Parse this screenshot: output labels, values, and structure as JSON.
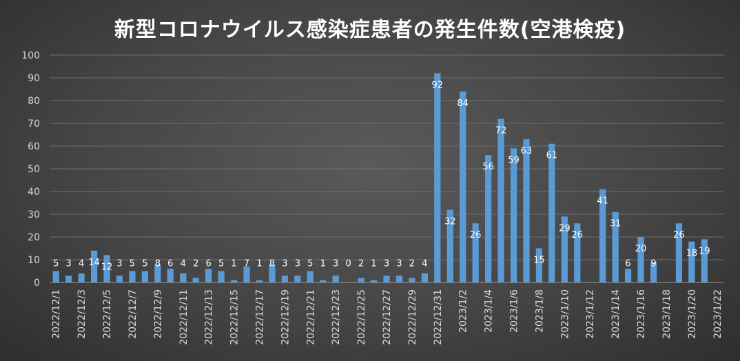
{
  "chart_data": {
    "type": "bar",
    "title": "新型コロナウイルス感染症患者の発生件数(空港検疫)",
    "xlabel": "",
    "ylabel": "",
    "ylim": [
      0,
      100
    ],
    "y_ticks": [
      0,
      10,
      20,
      30,
      40,
      50,
      60,
      70,
      80,
      90,
      100
    ],
    "grid": true,
    "legend": "none",
    "series_color": "#5b9bd5",
    "categories": [
      "2022/12/1",
      "2022/12/2",
      "2022/12/3",
      "2022/12/4",
      "2022/12/5",
      "2022/12/6",
      "2022/12/7",
      "2022/12/8",
      "2022/12/9",
      "2022/12/10",
      "2022/12/11",
      "2022/12/12",
      "2022/12/13",
      "2022/12/14",
      "2022/12/15",
      "2022/12/16",
      "2022/12/17",
      "2022/12/18",
      "2022/12/19",
      "2022/12/20",
      "2022/12/21",
      "2022/12/22",
      "2022/12/23",
      "2022/12/24",
      "2022/12/25",
      "2022/12/26",
      "2022/12/27",
      "2022/12/28",
      "2022/12/29",
      "2022/12/30",
      "2022/12/31",
      "2023/1/1",
      "2023/1/2",
      "2023/1/3",
      "2023/1/4",
      "2023/1/5",
      "2023/1/6",
      "2023/1/7",
      "2023/1/8",
      "2023/1/9",
      "2023/1/10",
      "2023/1/11",
      "2023/1/12",
      "2023/1/13",
      "2023/1/14",
      "2023/1/15",
      "2023/1/16",
      "2023/1/17",
      "2023/1/18",
      "2023/1/19",
      "2023/1/20",
      "2023/1/21",
      "2023/1/22"
    ],
    "tick_labels": [
      "2022/12/1",
      "2022/12/3",
      "2022/12/5",
      "2022/12/7",
      "2022/12/9",
      "2022/12/11",
      "2022/12/13",
      "2022/12/15",
      "2022/12/17",
      "2022/12/19",
      "2022/12/21",
      "2022/12/23",
      "2022/12/25",
      "2022/12/27",
      "2022/12/29",
      "2022/12/31",
      "2023/1/2",
      "2023/1/4",
      "2023/1/6",
      "2023/1/8",
      "2023/1/10",
      "2023/1/12",
      "2023/1/14",
      "2023/1/16",
      "2023/1/18",
      "2023/1/20",
      "2023/1/22"
    ],
    "values": [
      5,
      3,
      4,
      14,
      12,
      3,
      5,
      5,
      8,
      6,
      4,
      2,
      6,
      5,
      1,
      7,
      1,
      8,
      3,
      3,
      5,
      1,
      3,
      0,
      2,
      1,
      3,
      3,
      2,
      4,
      92,
      32,
      84,
      26,
      56,
      72,
      59,
      63,
      15,
      61,
      29,
      26,
      null,
      41,
      31,
      6,
      20,
      9,
      null,
      26,
      18,
      19,
      null
    ],
    "data_labels": [
      "5",
      "3",
      "4",
      "14",
      "12",
      "3",
      "5",
      "5",
      "8",
      "6",
      "4",
      "2",
      "6",
      "5",
      "1",
      "7",
      "1",
      "8",
      "3",
      "3",
      "5",
      "1",
      "3",
      "0",
      "2",
      "1",
      "3",
      "3",
      "2",
      "4",
      "92",
      "32",
      "84",
      "26",
      "56",
      "72",
      "59",
      "63",
      "15",
      "61",
      "29",
      "26",
      "",
      "41",
      "31",
      "6",
      "20",
      "9",
      "",
      "26",
      "18",
      "19",
      ""
    ]
  }
}
